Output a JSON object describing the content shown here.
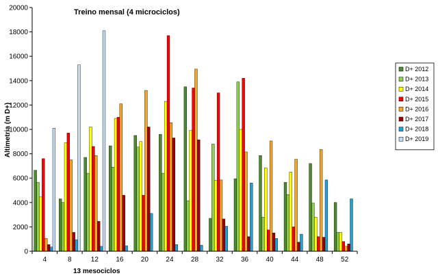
{
  "chart_data": {
    "type": "bar",
    "title": "Treino mensal (4 microciclos)",
    "xlabel": "13 mesociclos",
    "ylabel": "Altimetria (m D+)",
    "ylim": [
      0,
      20000
    ],
    "yticks": [
      0,
      2000,
      4000,
      6000,
      8000,
      10000,
      12000,
      14000,
      16000,
      18000,
      20000
    ],
    "categories": [
      "4",
      "8",
      "12",
      "16",
      "20",
      "24",
      "28",
      "32",
      "36",
      "40",
      "44",
      "48",
      "52"
    ],
    "legend_position": "right",
    "grid": false,
    "series": [
      {
        "name": "D+ 2012",
        "color": "#4e8b2f",
        "values": [
          6650,
          4300,
          7700,
          8650,
          9500,
          9600,
          13500,
          2700,
          5950,
          7850,
          5650,
          7200,
          4000
        ]
      },
      {
        "name": "D+ 2013",
        "color": "#92d050",
        "values": [
          5650,
          4000,
          6400,
          6900,
          8550,
          6400,
          4150,
          8800,
          13900,
          2800,
          4650,
          3950,
          1550
        ]
      },
      {
        "name": "D+ 2014",
        "color": "#ffff00",
        "values": [
          4450,
          8900,
          10200,
          10900,
          9000,
          12300,
          9900,
          5800,
          10000,
          6850,
          6500,
          2800,
          1550
        ]
      },
      {
        "name": "D+ 2015",
        "color": "#ff0000",
        "values": [
          7600,
          9700,
          8600,
          11000,
          4600,
          17700,
          13400,
          13000,
          14200,
          1750,
          2000,
          1200,
          800
        ]
      },
      {
        "name": "D+ 2016",
        "color": "#f5a623",
        "values": [
          1050,
          7500,
          7850,
          12100,
          13200,
          10550,
          14950,
          5850,
          8150,
          9050,
          7550,
          8350,
          400
        ]
      },
      {
        "name": "D+ 2017",
        "color": "#a50000",
        "values": [
          550,
          1550,
          2450,
          4600,
          10200,
          9300,
          9150,
          2650,
          1200,
          1500,
          750,
          1150,
          600
        ]
      },
      {
        "name": "D+ 2018",
        "color": "#1fa3d6",
        "values": [
          350,
          950,
          400,
          450,
          3100,
          550,
          500,
          2050,
          5600,
          1050,
          1400,
          5850,
          4300
        ]
      },
      {
        "name": "D+ 2019",
        "color": "#c5d9f1",
        "values": [
          10100,
          15300,
          18100,
          null,
          null,
          null,
          null,
          null,
          null,
          null,
          null,
          null,
          null
        ]
      }
    ]
  }
}
